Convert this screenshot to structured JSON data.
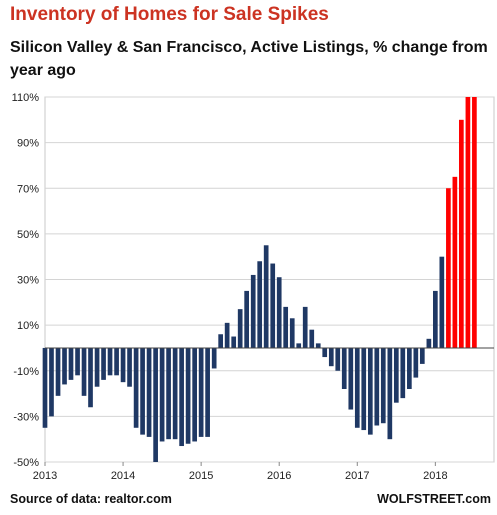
{
  "chart_data": {
    "type": "bar",
    "title": "Inventory of Homes for Sale Spikes",
    "subtitle": "Silicon Valley & San Francisco, Active Listings, % change from year ago",
    "y_ticks": [
      "110%",
      "90%",
      "70%",
      "50%",
      "30%",
      "10%",
      "-10%",
      "-30%",
      "-50%"
    ],
    "x_ticks": [
      "2013",
      "2014",
      "2015",
      "2016",
      "2017",
      "2018"
    ],
    "ylim": [
      -50,
      110
    ],
    "xlim": [
      2013,
      2018.7
    ],
    "grid": true,
    "series": [
      {
        "color": "#1f3864",
        "x": [
          2013.0,
          2013.083,
          2013.167,
          2013.25,
          2013.333,
          2013.417,
          2013.5,
          2013.583,
          2013.667,
          2013.75,
          2013.833,
          2013.917,
          2014.0,
          2014.083,
          2014.167,
          2014.25,
          2014.333,
          2014.417,
          2014.5,
          2014.583,
          2014.667,
          2014.75,
          2014.833,
          2014.917,
          2015.0,
          2015.083,
          2015.167,
          2015.25,
          2015.333,
          2015.417,
          2015.5,
          2015.583,
          2015.667,
          2015.75,
          2015.833,
          2015.917,
          2016.0,
          2016.083,
          2016.167,
          2016.25,
          2016.333,
          2016.417,
          2016.5,
          2016.583,
          2016.667,
          2016.75,
          2016.833,
          2016.917,
          2017.0,
          2017.083,
          2017.167,
          2017.25,
          2017.333,
          2017.417,
          2017.5,
          2017.583,
          2017.667,
          2017.75,
          2017.833,
          2017.917,
          2018.0,
          2018.083
        ],
        "values": [
          -35,
          -30,
          -21,
          -16,
          -14,
          -12,
          -21,
          -26,
          -17,
          -14,
          -12,
          -12,
          -15,
          -17,
          -35,
          -38,
          -39,
          -50,
          -41,
          -40,
          -40,
          -43,
          -42,
          -41,
          -39,
          -39,
          -9,
          6,
          11,
          5,
          17,
          25,
          32,
          38,
          45,
          37,
          31,
          18,
          13,
          2,
          18,
          8,
          2,
          -4,
          -8,
          -10,
          -18,
          -27,
          -35,
          -36,
          -38,
          -34,
          -33,
          -40,
          -24,
          -22,
          -18,
          -13,
          -7,
          4,
          25,
          40
        ]
      },
      {
        "color": "#ff0000",
        "x": [
          2018.167,
          2018.25,
          2018.333,
          2018.417,
          2018.5
        ],
        "values": [
          70,
          75,
          100,
          112,
          120
        ]
      }
    ]
  },
  "source": "Source of data: realtor.com",
  "brand": "WOLFSTREET.com"
}
